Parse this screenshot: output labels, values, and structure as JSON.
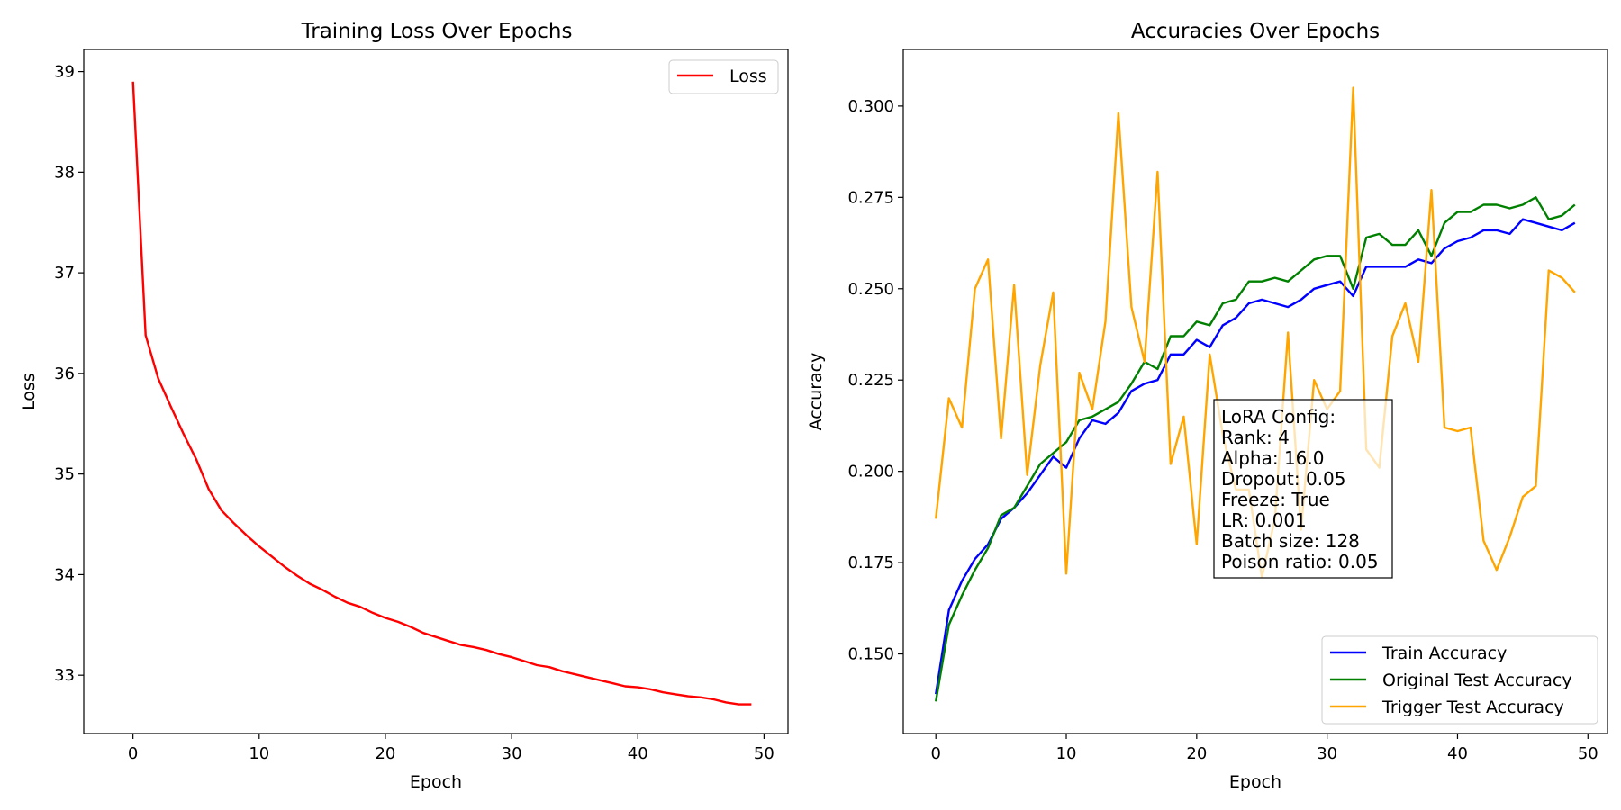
{
  "chart_data": [
    {
      "type": "line",
      "title": "Training Loss Over Epochs",
      "xlabel": "Epoch",
      "ylabel": "Loss",
      "xlim": [
        -3.9,
        51.9
      ],
      "ylim": [
        32.42,
        39.22
      ],
      "xticks": [
        "0",
        "10",
        "20",
        "30",
        "40",
        "50"
      ],
      "yticks": [
        "33",
        "34",
        "35",
        "36",
        "37",
        "38",
        "39"
      ],
      "legend_position": "top-right",
      "x": [
        0,
        1,
        2,
        3,
        4,
        5,
        6,
        7,
        8,
        9,
        10,
        11,
        12,
        13,
        14,
        15,
        16,
        17,
        18,
        19,
        20,
        21,
        22,
        23,
        24,
        25,
        26,
        27,
        28,
        29,
        30,
        31,
        32,
        33,
        34,
        35,
        36,
        37,
        38,
        39,
        40,
        41,
        42,
        43,
        44,
        45,
        46,
        47,
        48,
        49
      ],
      "series": [
        {
          "name": "Loss",
          "color": "#ff0000",
          "values": [
            38.9,
            36.38,
            35.95,
            35.67,
            35.4,
            35.15,
            34.85,
            34.64,
            34.51,
            34.39,
            34.28,
            34.18,
            34.08,
            33.99,
            33.91,
            33.85,
            33.78,
            33.72,
            33.68,
            33.62,
            33.57,
            33.53,
            33.48,
            33.42,
            33.38,
            33.34,
            33.3,
            33.28,
            33.25,
            33.21,
            33.18,
            33.14,
            33.1,
            33.08,
            33.04,
            33.01,
            32.98,
            32.95,
            32.92,
            32.89,
            32.88,
            32.86,
            32.83,
            32.81,
            32.79,
            32.78,
            32.76,
            32.73,
            32.71,
            32.71
          ]
        }
      ]
    },
    {
      "type": "line",
      "title": "Accuracies Over Epochs",
      "xlabel": "Epoch",
      "ylabel": "Accuracy",
      "xlim": [
        -2.5,
        51.5
      ],
      "ylim": [
        0.1282,
        0.3155
      ],
      "xticks": [
        "0",
        "10",
        "20",
        "30",
        "40",
        "50"
      ],
      "yticks": [
        "0.150",
        "0.175",
        "0.200",
        "0.225",
        "0.250",
        "0.275",
        "0.300"
      ],
      "legend_position": "bottom-right",
      "x": [
        0,
        1,
        2,
        3,
        4,
        5,
        6,
        7,
        8,
        9,
        10,
        11,
        12,
        13,
        14,
        15,
        16,
        17,
        18,
        19,
        20,
        21,
        22,
        23,
        24,
        25,
        26,
        27,
        28,
        29,
        30,
        31,
        32,
        33,
        34,
        35,
        36,
        37,
        38,
        39,
        40,
        41,
        42,
        43,
        44,
        45,
        46,
        47,
        48,
        49
      ],
      "series": [
        {
          "name": "Train Accuracy",
          "color": "#0000ff",
          "values": [
            0.139,
            0.162,
            0.17,
            0.176,
            0.18,
            0.187,
            0.19,
            0.194,
            0.199,
            0.204,
            0.201,
            0.209,
            0.214,
            0.213,
            0.216,
            0.222,
            0.224,
            0.225,
            0.232,
            0.232,
            0.236,
            0.234,
            0.24,
            0.242,
            0.246,
            0.247,
            0.246,
            0.245,
            0.247,
            0.25,
            0.251,
            0.252,
            0.248,
            0.256,
            0.256,
            0.256,
            0.256,
            0.258,
            0.257,
            0.261,
            0.263,
            0.264,
            0.266,
            0.266,
            0.265,
            0.269,
            0.268,
            0.267,
            0.266,
            0.268
          ]
        },
        {
          "name": "Original Test Accuracy",
          "color": "#008000",
          "values": [
            0.137,
            0.158,
            0.166,
            0.173,
            0.179,
            0.188,
            0.19,
            0.196,
            0.202,
            0.205,
            0.208,
            0.214,
            0.215,
            0.217,
            0.219,
            0.224,
            0.23,
            0.228,
            0.237,
            0.237,
            0.241,
            0.24,
            0.246,
            0.247,
            0.252,
            0.252,
            0.253,
            0.252,
            0.255,
            0.258,
            0.259,
            0.259,
            0.25,
            0.264,
            0.265,
            0.262,
            0.262,
            0.266,
            0.259,
            0.268,
            0.271,
            0.271,
            0.273,
            0.273,
            0.272,
            0.273,
            0.275,
            0.269,
            0.27,
            0.273
          ]
        },
        {
          "name": "Trigger Test Accuracy",
          "color": "#ffa500",
          "values": [
            0.187,
            0.22,
            0.212,
            0.25,
            0.258,
            0.209,
            0.251,
            0.199,
            0.229,
            0.249,
            0.172,
            0.227,
            0.217,
            0.241,
            0.298,
            0.245,
            0.23,
            0.282,
            0.202,
            0.215,
            0.18,
            0.232,
            0.21,
            0.195,
            0.195,
            0.171,
            0.187,
            0.238,
            0.184,
            0.225,
            0.217,
            0.222,
            0.305,
            0.206,
            0.201,
            0.237,
            0.246,
            0.23,
            0.277,
            0.212,
            0.211,
            0.212,
            0.181,
            0.173,
            0.182,
            0.193,
            0.196,
            0.255,
            0.253,
            0.249
          ]
        }
      ],
      "annotation": {
        "lines": [
          "LoRA Config:",
          "Rank: 4",
          "Alpha: 16.0",
          "Dropout: 0.05",
          "Freeze: True",
          "LR: 0.001",
          "Batch size: 128",
          "Poison ratio: 0.05"
        ]
      }
    }
  ]
}
